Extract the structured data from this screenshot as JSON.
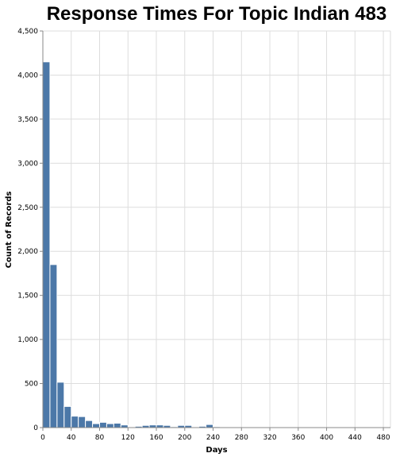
{
  "chart_data": {
    "type": "bar",
    "title": "Response Times For Topic Indian 483",
    "xlabel": "Days",
    "ylabel": "Count of Records",
    "bin_width": 10,
    "xlim": [
      0,
      490
    ],
    "ylim": [
      0,
      4500
    ],
    "x_ticks": [
      0,
      40,
      80,
      120,
      160,
      200,
      240,
      280,
      320,
      360,
      400,
      440,
      480
    ],
    "y_ticks": [
      0,
      500,
      1000,
      1500,
      2000,
      2500,
      3000,
      3500,
      4000,
      4500
    ],
    "y_tick_labels": [
      "0",
      "500",
      "1,000",
      "1,500",
      "2,000",
      "2,500",
      "3,000",
      "3,500",
      "4,000",
      "4,500"
    ],
    "grid": true,
    "bins": [
      {
        "x0": 0,
        "x1": 10,
        "count": 4150
      },
      {
        "x0": 10,
        "x1": 20,
        "count": 1850
      },
      {
        "x0": 20,
        "x1": 30,
        "count": 515
      },
      {
        "x0": 30,
        "x1": 40,
        "count": 240
      },
      {
        "x0": 40,
        "x1": 50,
        "count": 130
      },
      {
        "x0": 50,
        "x1": 60,
        "count": 125
      },
      {
        "x0": 60,
        "x1": 70,
        "count": 80
      },
      {
        "x0": 70,
        "x1": 80,
        "count": 45
      },
      {
        "x0": 80,
        "x1": 90,
        "count": 60
      },
      {
        "x0": 90,
        "x1": 100,
        "count": 45
      },
      {
        "x0": 100,
        "x1": 110,
        "count": 50
      },
      {
        "x0": 110,
        "x1": 120,
        "count": 30
      },
      {
        "x0": 130,
        "x1": 140,
        "count": 15
      },
      {
        "x0": 140,
        "x1": 150,
        "count": 25
      },
      {
        "x0": 150,
        "x1": 160,
        "count": 30
      },
      {
        "x0": 160,
        "x1": 170,
        "count": 30
      },
      {
        "x0": 170,
        "x1": 180,
        "count": 25
      },
      {
        "x0": 180,
        "x1": 190,
        "count": 10
      },
      {
        "x0": 190,
        "x1": 200,
        "count": 25
      },
      {
        "x0": 200,
        "x1": 210,
        "count": 25
      },
      {
        "x0": 220,
        "x1": 230,
        "count": 15
      },
      {
        "x0": 230,
        "x1": 240,
        "count": 35
      },
      {
        "x0": 240,
        "x1": 250,
        "count": 10
      }
    ]
  }
}
